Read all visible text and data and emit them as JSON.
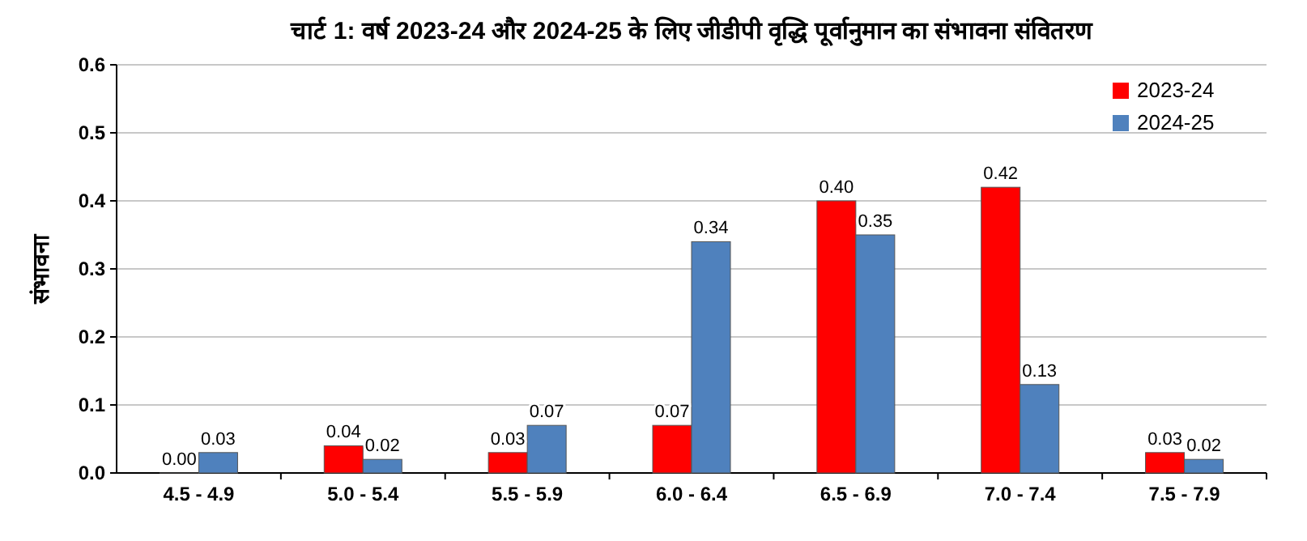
{
  "chart_data": {
    "type": "bar",
    "title": "चार्ट 1: वर्ष 2023-24 और 2024-25 के लिए जीडीपी वृद्धि पूर्वानुमान का संभावना संवितरण",
    "ylabel": "संभावना",
    "categories": [
      "4.5 - 4.9",
      "5.0 - 5.4",
      "5.5 - 5.9",
      "6.0 - 6.4",
      "6.5 - 6.9",
      "7.0 - 7.4",
      "7.5 - 7.9"
    ],
    "series": [
      {
        "name": "2023-24",
        "color": "#ff0000",
        "values": [
          0.0,
          0.04,
          0.03,
          0.07,
          0.4,
          0.42,
          0.03
        ],
        "value_labels": [
          "0.00",
          "0.04",
          "0.03",
          "0.07",
          "0.40",
          "0.42",
          "0.03"
        ]
      },
      {
        "name": "2024-25",
        "color": "#4f81bd",
        "values": [
          0.03,
          0.02,
          0.07,
          0.34,
          0.35,
          0.13,
          0.02
        ],
        "value_labels": [
          "0.03",
          "0.02",
          "0.07",
          "0.34",
          "0.35",
          "0.13",
          "0.02"
        ]
      }
    ],
    "ylim": [
      0,
      0.6
    ],
    "yticks": [
      {
        "value": 0,
        "label": "0.0"
      },
      0.1,
      0.2,
      0.3,
      0.4,
      0.5,
      0.6
    ],
    "grid": "y",
    "legend": "top right"
  }
}
